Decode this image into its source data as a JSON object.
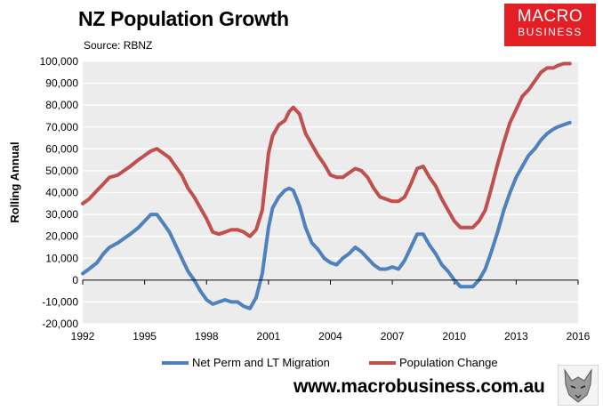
{
  "header": {
    "title": "NZ Population Growth",
    "source": "Source: RBNZ",
    "logo_line1": "MACRO",
    "logo_line2": "BUSINESS",
    "website": "www.macrobusiness.com.au"
  },
  "colors": {
    "plot_bg": "#ececec",
    "blue": "#4f81bd",
    "red": "#c0504d",
    "logo_red": "#e31f26"
  },
  "chart_data": {
    "type": "line",
    "title": "NZ Population Growth",
    "xlabel": "",
    "ylabel": "Rolling Annual",
    "xlim": [
      1992,
      2016
    ],
    "ylim": [
      -20000,
      100000
    ],
    "x_ticks": [
      1992,
      1995,
      1998,
      2001,
      2004,
      2007,
      2010,
      2013,
      2016
    ],
    "y_ticks": [
      -20000,
      -10000,
      0,
      10000,
      20000,
      30000,
      40000,
      50000,
      60000,
      70000,
      80000,
      90000,
      100000
    ],
    "y_tick_labels": [
      "-20,000",
      "-10,000",
      "0",
      "10,000",
      "20,000",
      "30,000",
      "40,000",
      "50,000",
      "60,000",
      "70,000",
      "80,000",
      "90,000",
      "100,000"
    ],
    "legend_position": "bottom",
    "series": [
      {
        "name": "Net Perm and LT Migration",
        "color": "#4f81bd",
        "points": [
          [
            1992.0,
            3000
          ],
          [
            1992.3,
            5000
          ],
          [
            1992.7,
            8000
          ],
          [
            1993.0,
            12000
          ],
          [
            1993.3,
            15000
          ],
          [
            1993.7,
            17000
          ],
          [
            1994.0,
            19000
          ],
          [
            1994.3,
            21000
          ],
          [
            1994.7,
            24000
          ],
          [
            1995.0,
            27000
          ],
          [
            1995.3,
            30000
          ],
          [
            1995.6,
            30000
          ],
          [
            1995.9,
            26000
          ],
          [
            1996.2,
            22000
          ],
          [
            1996.5,
            16000
          ],
          [
            1996.8,
            10000
          ],
          [
            1997.1,
            4000
          ],
          [
            1997.4,
            0
          ],
          [
            1997.7,
            -5000
          ],
          [
            1998.0,
            -9000
          ],
          [
            1998.3,
            -11000
          ],
          [
            1998.6,
            -10000
          ],
          [
            1998.9,
            -9000
          ],
          [
            1999.2,
            -10000
          ],
          [
            1999.5,
            -10000
          ],
          [
            1999.8,
            -12000
          ],
          [
            2000.1,
            -13000
          ],
          [
            2000.4,
            -8000
          ],
          [
            2000.7,
            3000
          ],
          [
            2001.0,
            24000
          ],
          [
            2001.2,
            33000
          ],
          [
            2001.5,
            38000
          ],
          [
            2001.8,
            41000
          ],
          [
            2002.0,
            42000
          ],
          [
            2002.2,
            41000
          ],
          [
            2002.5,
            34000
          ],
          [
            2002.8,
            24000
          ],
          [
            2003.1,
            17000
          ],
          [
            2003.4,
            14000
          ],
          [
            2003.7,
            10000
          ],
          [
            2004.0,
            8000
          ],
          [
            2004.3,
            7000
          ],
          [
            2004.6,
            10000
          ],
          [
            2004.9,
            12000
          ],
          [
            2005.2,
            15000
          ],
          [
            2005.5,
            13000
          ],
          [
            2005.8,
            10000
          ],
          [
            2006.1,
            7000
          ],
          [
            2006.4,
            5000
          ],
          [
            2006.7,
            5000
          ],
          [
            2007.0,
            6000
          ],
          [
            2007.3,
            5000
          ],
          [
            2007.6,
            9000
          ],
          [
            2007.9,
            15000
          ],
          [
            2008.2,
            21000
          ],
          [
            2008.5,
            21000
          ],
          [
            2008.8,
            16000
          ],
          [
            2009.1,
            12000
          ],
          [
            2009.4,
            7000
          ],
          [
            2009.7,
            4000
          ],
          [
            2010.0,
            0
          ],
          [
            2010.3,
            -3000
          ],
          [
            2010.6,
            -3000
          ],
          [
            2010.9,
            -3000
          ],
          [
            2011.2,
            0
          ],
          [
            2011.5,
            5000
          ],
          [
            2011.8,
            13000
          ],
          [
            2012.1,
            22000
          ],
          [
            2012.4,
            32000
          ],
          [
            2012.7,
            40000
          ],
          [
            2013.0,
            47000
          ],
          [
            2013.3,
            52000
          ],
          [
            2013.6,
            57000
          ],
          [
            2013.9,
            60000
          ],
          [
            2014.2,
            64000
          ],
          [
            2014.5,
            67000
          ],
          [
            2014.8,
            69000
          ],
          [
            2015.0,
            70000
          ],
          [
            2015.3,
            71000
          ],
          [
            2015.6,
            72000
          ]
        ]
      },
      {
        "name": "Population Change",
        "color": "#c0504d",
        "points": [
          [
            1992.0,
            35000
          ],
          [
            1992.3,
            37000
          ],
          [
            1992.7,
            41000
          ],
          [
            1993.0,
            44000
          ],
          [
            1993.3,
            47000
          ],
          [
            1993.7,
            48000
          ],
          [
            1994.0,
            50000
          ],
          [
            1994.3,
            52000
          ],
          [
            1994.7,
            55000
          ],
          [
            1995.0,
            57000
          ],
          [
            1995.3,
            59000
          ],
          [
            1995.6,
            60000
          ],
          [
            1995.9,
            58000
          ],
          [
            1996.2,
            56000
          ],
          [
            1996.5,
            52000
          ],
          [
            1996.8,
            48000
          ],
          [
            1997.1,
            42000
          ],
          [
            1997.4,
            38000
          ],
          [
            1997.7,
            33000
          ],
          [
            1998.0,
            28000
          ],
          [
            1998.3,
            22000
          ],
          [
            1998.6,
            21000
          ],
          [
            1998.9,
            22000
          ],
          [
            1999.2,
            23000
          ],
          [
            1999.5,
            23000
          ],
          [
            1999.8,
            22000
          ],
          [
            2000.1,
            20000
          ],
          [
            2000.4,
            23000
          ],
          [
            2000.7,
            32000
          ],
          [
            2001.0,
            58000
          ],
          [
            2001.2,
            66000
          ],
          [
            2001.5,
            71000
          ],
          [
            2001.8,
            73000
          ],
          [
            2002.0,
            77000
          ],
          [
            2002.2,
            79000
          ],
          [
            2002.5,
            76000
          ],
          [
            2002.8,
            67000
          ],
          [
            2003.1,
            62000
          ],
          [
            2003.4,
            57000
          ],
          [
            2003.7,
            53000
          ],
          [
            2004.0,
            48000
          ],
          [
            2004.3,
            47000
          ],
          [
            2004.6,
            47000
          ],
          [
            2004.9,
            49000
          ],
          [
            2005.2,
            51000
          ],
          [
            2005.5,
            50000
          ],
          [
            2005.8,
            47000
          ],
          [
            2006.1,
            42000
          ],
          [
            2006.4,
            38000
          ],
          [
            2006.7,
            37000
          ],
          [
            2007.0,
            36000
          ],
          [
            2007.3,
            36000
          ],
          [
            2007.6,
            38000
          ],
          [
            2007.9,
            44000
          ],
          [
            2008.2,
            51000
          ],
          [
            2008.5,
            52000
          ],
          [
            2008.8,
            47000
          ],
          [
            2009.1,
            43000
          ],
          [
            2009.4,
            37000
          ],
          [
            2009.7,
            32000
          ],
          [
            2010.0,
            27000
          ],
          [
            2010.3,
            24000
          ],
          [
            2010.6,
            24000
          ],
          [
            2010.9,
            24000
          ],
          [
            2011.2,
            27000
          ],
          [
            2011.5,
            32000
          ],
          [
            2011.8,
            42000
          ],
          [
            2012.1,
            53000
          ],
          [
            2012.4,
            63000
          ],
          [
            2012.7,
            72000
          ],
          [
            2013.0,
            78000
          ],
          [
            2013.3,
            84000
          ],
          [
            2013.6,
            87000
          ],
          [
            2013.9,
            91000
          ],
          [
            2014.2,
            95000
          ],
          [
            2014.5,
            97000
          ],
          [
            2014.8,
            97000
          ],
          [
            2015.0,
            98000
          ],
          [
            2015.3,
            99000
          ],
          [
            2015.6,
            99000
          ]
        ]
      }
    ]
  }
}
